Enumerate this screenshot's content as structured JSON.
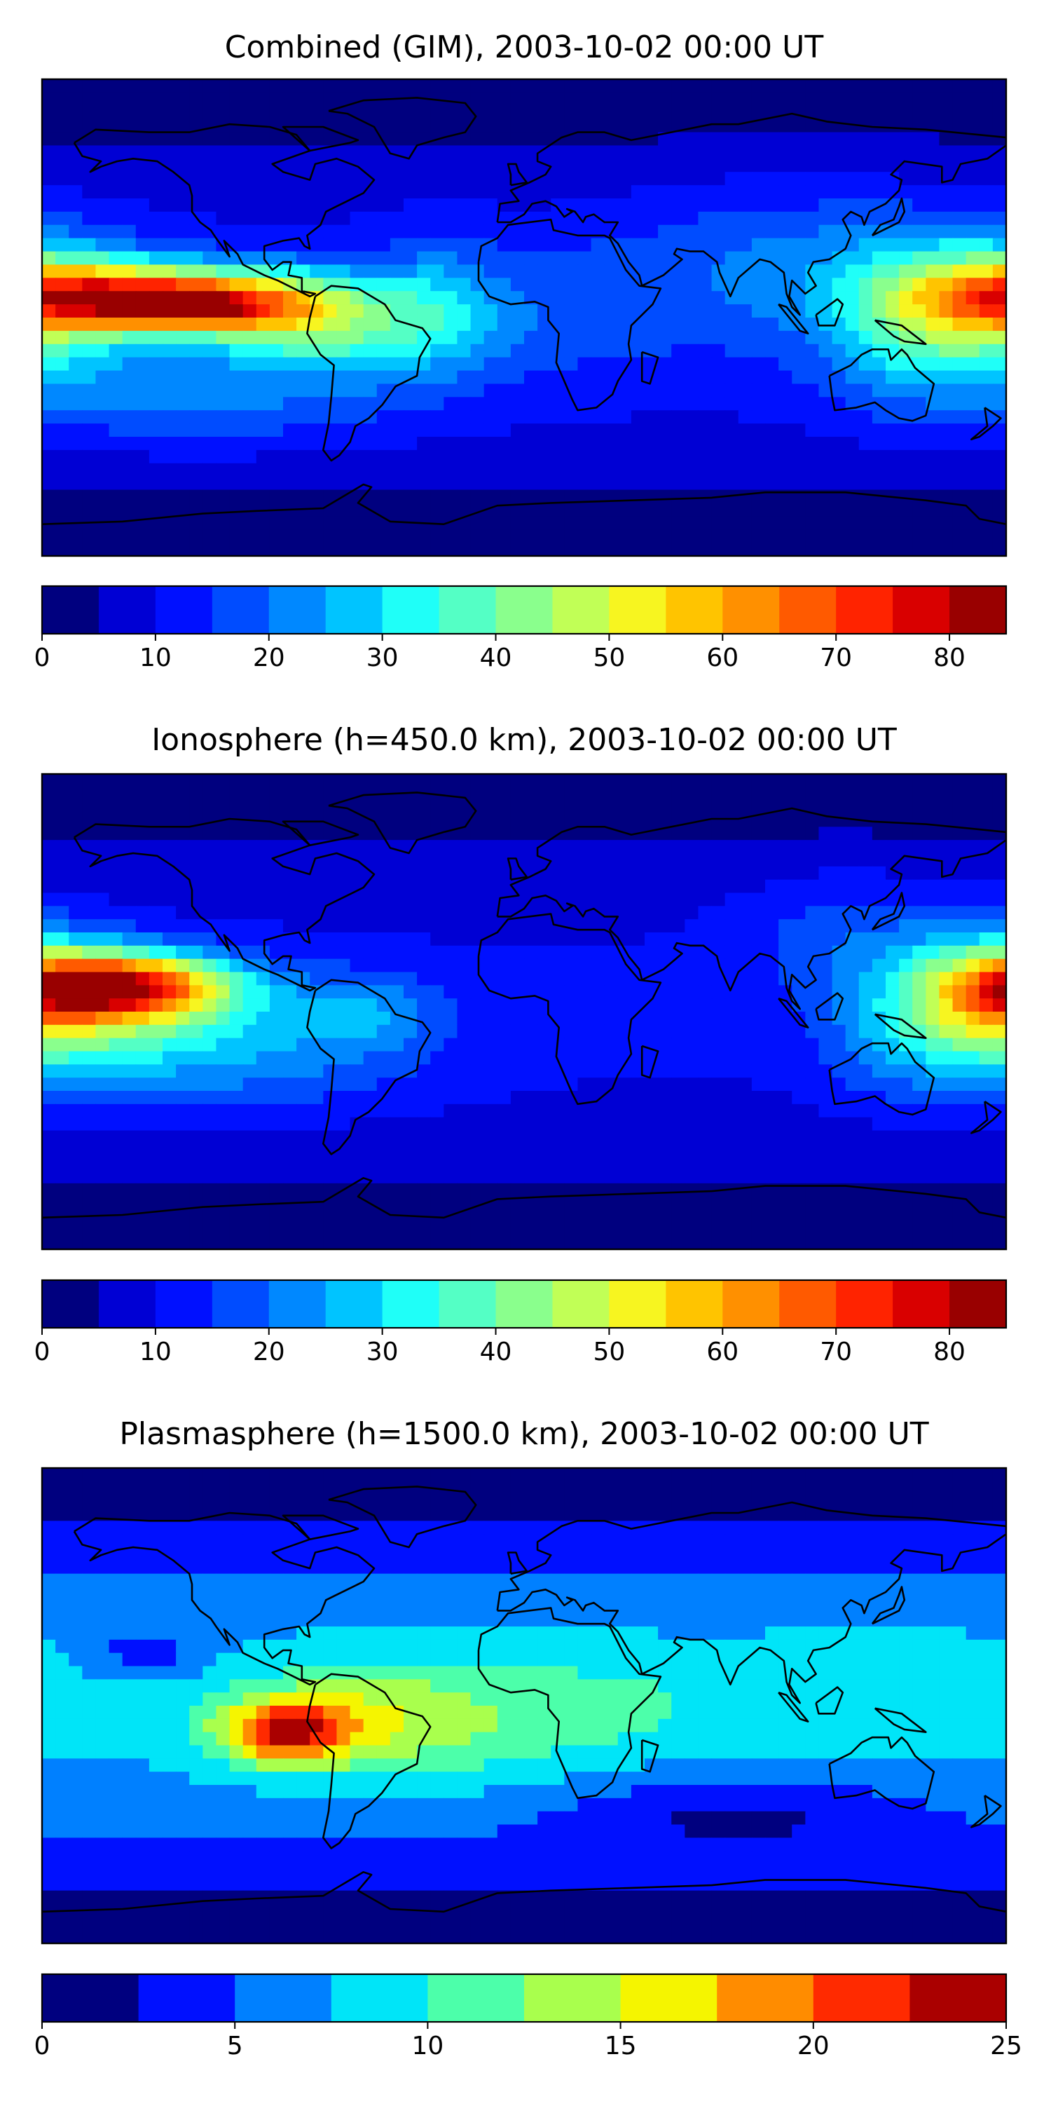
{
  "chart_data": [
    {
      "type": "filled-contour-map",
      "title": "Combined (GIM), 2003-10-02 00:00 UT",
      "projection": "plate-carree",
      "lon_range": [
        -180,
        180
      ],
      "lat_range": [
        -90,
        90
      ],
      "colorbar": {
        "levels": [
          0,
          5,
          10,
          15,
          20,
          25,
          30,
          35,
          40,
          45,
          50,
          55,
          60,
          65,
          70,
          75,
          80,
          85
        ],
        "ticks": [
          0,
          10,
          20,
          30,
          40,
          50,
          60,
          70,
          80
        ],
        "tick_labels": [
          "0",
          "10",
          "20",
          "30",
          "40",
          "50",
          "60",
          "70",
          "80"
        ],
        "colors": [
          "#00007f",
          "#0000d4",
          "#0010ff",
          "#004cff",
          "#0088ff",
          "#00c4ff",
          "#1ffff8",
          "#54ffc5",
          "#8aff8d",
          "#c1ff56",
          "#f7f520",
          "#ffc400",
          "#ff9000",
          "#ff5a00",
          "#ff2300",
          "#d90000",
          "#990000"
        ]
      },
      "field_blobs": [
        {
          "lon": -140,
          "lat": 8,
          "rlon": 55,
          "rlat": 12,
          "value": 53
        },
        {
          "lon": -125,
          "lat": 3,
          "rlon": 30,
          "rlat": 8,
          "value": 25
        },
        {
          "lon": -90,
          "lat": 0,
          "rlon": 35,
          "rlat": 15,
          "value": 20
        },
        {
          "lon": -55,
          "lat": -3,
          "rlon": 45,
          "rlat": 20,
          "value": 18
        },
        {
          "lon": 175,
          "lat": 5,
          "rlon": 40,
          "rlat": 25,
          "value": 33
        },
        {
          "lon": 140,
          "lat": -5,
          "rlon": 30,
          "rlat": 30,
          "value": 12
        },
        {
          "lon": 100,
          "lat": 20,
          "rlon": 60,
          "rlat": 30,
          "value": 10
        },
        {
          "lon": -30,
          "lat": 10,
          "rlon": 20,
          "rlat": 25,
          "value": 8
        },
        {
          "lon": 20,
          "lat": 5,
          "rlon": 40,
          "rlat": 25,
          "value": 5
        },
        {
          "lon": -120,
          "lat": -30,
          "rlon": 80,
          "rlat": 20,
          "value": 10
        }
      ],
      "field_background": 12
    },
    {
      "type": "filled-contour-map",
      "title": "Ionosphere  (h=450.0 km), 2003-10-02 00:00 UT",
      "projection": "plate-carree",
      "lon_range": [
        -180,
        180
      ],
      "lat_range": [
        -90,
        90
      ],
      "colorbar": {
        "levels": [
          0,
          5,
          10,
          15,
          20,
          25,
          30,
          35,
          40,
          45,
          50,
          55,
          60,
          65,
          70,
          75,
          80,
          85
        ],
        "ticks": [
          0,
          10,
          20,
          30,
          40,
          50,
          60,
          70,
          80
        ],
        "tick_labels": [
          "0",
          "10",
          "20",
          "30",
          "40",
          "50",
          "60",
          "70",
          "80"
        ],
        "colors": [
          "#00007f",
          "#0000d4",
          "#0010ff",
          "#004cff",
          "#0088ff",
          "#00c4ff",
          "#1ffff8",
          "#54ffc5",
          "#8aff8d",
          "#c1ff56",
          "#f7f520",
          "#ffc400",
          "#ff9000",
          "#ff5a00",
          "#ff2300",
          "#d90000",
          "#990000"
        ]
      },
      "field_blobs": [
        {
          "lon": -150,
          "lat": 10,
          "rlon": 40,
          "rlat": 12,
          "value": 52
        },
        {
          "lon": -140,
          "lat": 0,
          "rlon": 50,
          "rlat": 20,
          "value": 18
        },
        {
          "lon": 175,
          "lat": 5,
          "rlon": 35,
          "rlat": 25,
          "value": 35
        },
        {
          "lon": 140,
          "lat": -10,
          "rlon": 30,
          "rlat": 25,
          "value": 10
        },
        {
          "lon": -60,
          "lat": 0,
          "rlon": 30,
          "rlat": 15,
          "value": 12
        },
        {
          "lon": -110,
          "lat": -20,
          "rlon": 70,
          "rlat": 20,
          "value": 10
        },
        {
          "lon": 120,
          "lat": 30,
          "rlon": 40,
          "rlat": 25,
          "value": 8
        }
      ],
      "field_background": 11
    },
    {
      "type": "filled-contour-map",
      "title": "Plasmasphere (h=1500.0 km), 2003-10-02 00:00 UT",
      "projection": "plate-carree",
      "lon_range": [
        -180,
        180
      ],
      "lat_range": [
        -90,
        90
      ],
      "colorbar": {
        "levels": [
          0,
          2.5,
          5,
          7.5,
          10,
          12.5,
          15,
          17.5,
          20,
          22.5,
          25
        ],
        "ticks": [
          0,
          5,
          10,
          15,
          20,
          25
        ],
        "tick_labels": [
          "0",
          "5",
          "10",
          "15",
          "20",
          "25"
        ],
        "colors": [
          "#00007f",
          "#0010ff",
          "#0080ff",
          "#00e5f8",
          "#4cffaa",
          "#a9ff4d",
          "#f5f500",
          "#ff8c00",
          "#ff2a00",
          "#aa0000"
        ]
      },
      "field_blobs": [
        {
          "lon": -90,
          "lat": -10,
          "rlon": 25,
          "rlat": 12,
          "value": 13
        },
        {
          "lon": -65,
          "lat": -5,
          "rlon": 40,
          "rlat": 20,
          "value": 5
        },
        {
          "lon": -20,
          "lat": -5,
          "rlon": 50,
          "rlat": 25,
          "value": 3.5
        },
        {
          "lon": 40,
          "lat": 0,
          "rlon": 40,
          "rlat": 20,
          "value": 2
        },
        {
          "lon": 130,
          "lat": 5,
          "rlon": 40,
          "rlat": 25,
          "value": 2
        },
        {
          "lon": -140,
          "lat": 20,
          "rlon": 20,
          "rlat": 8,
          "value": -4
        },
        {
          "lon": 80,
          "lat": -40,
          "rlon": 70,
          "rlat": 15,
          "value": -4
        }
      ],
      "field_background": 8
    }
  ]
}
